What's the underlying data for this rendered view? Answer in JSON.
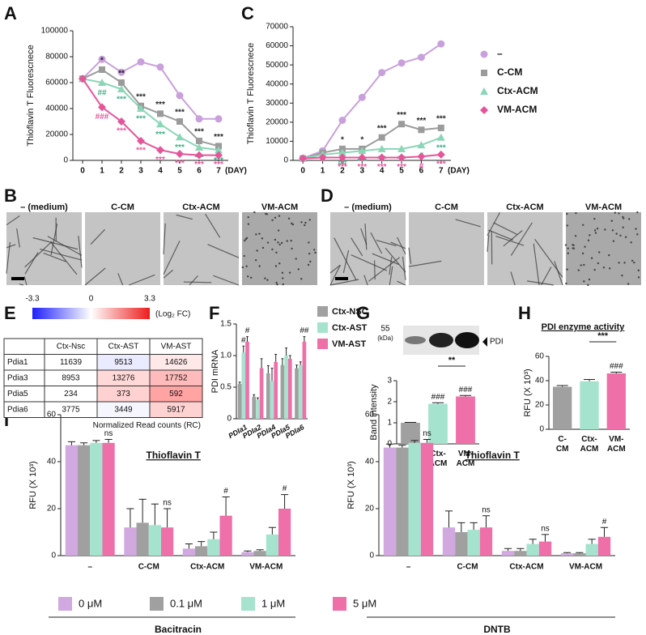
{
  "panel_labels": [
    "A",
    "B",
    "C",
    "D",
    "E",
    "F",
    "G",
    "H",
    "I"
  ],
  "micrographs": [
    {
      "labels": [
        "– (medium)",
        "C-CM",
        "Ctx-ACM",
        "VM-ACM"
      ]
    },
    {
      "labels": [
        "– (medium)",
        "C-CM",
        "Ctx-ACM",
        "VM-ACM"
      ]
    }
  ],
  "heatmap_table": {
    "colorbar": {
      "range": [
        -3.3,
        3.3
      ],
      "ticks": [
        -3.3,
        0,
        3.3
      ],
      "label": "(Log₂ FC)"
    },
    "columns": [
      "Ctx-Nsc",
      "Ctx-AST",
      "VM-AST"
    ],
    "rows": [
      {
        "name": "Pdia1",
        "values": [
          11639,
          9513,
          14626
        ]
      },
      {
        "name": "Pdia3",
        "values": [
          8953,
          13276,
          17752
        ]
      },
      {
        "name": "Pdia5",
        "values": [
          234,
          373,
          592
        ]
      },
      {
        "name": "Pdia6",
        "values": [
          3775,
          3449,
          5917
        ]
      }
    ],
    "caption": "Normalized Read counts (RC)"
  },
  "blot": {
    "marker": "55",
    "unit": "(kDa)",
    "band": "PDI"
  },
  "chart_data": [
    {
      "type": "line",
      "ylabel": "Thioflavin T Fluorescnece",
      "xlabel": "(DAY)",
      "x": [
        0,
        1,
        2,
        3,
        4,
        5,
        6,
        7
      ],
      "xlim": [
        -0.5,
        7.5
      ],
      "xticks": [
        0,
        1,
        2,
        3,
        4,
        5,
        6,
        7
      ],
      "series": [
        {
          "name": "–",
          "color": "#c9a0dc",
          "marker": "circle",
          "sig_color": "#c9a0dc"
        },
        {
          "name": "C-CM",
          "color": "#9b9b9b",
          "marker": "square",
          "sig_color": "#222222"
        },
        {
          "name": "Ctx-ACM",
          "color": "#8ad6b6",
          "marker": "triangle",
          "sig_color": "#3fae86"
        },
        {
          "name": "VM-ACM",
          "color": "#e4559a",
          "marker": "diamond",
          "sig_color": "#e4559a"
        }
      ],
      "panels": [
        {
          "ylim": [
            0,
            100000
          ],
          "yticks": [
            0,
            20000,
            40000,
            60000,
            80000,
            100000
          ],
          "values": [
            [
              63000,
              78000,
              68000,
              76000,
              72000,
              50000,
              32000,
              32000
            ],
            [
              63000,
              70000,
              60000,
              42000,
              36000,
              30000,
              15000,
              11000
            ],
            [
              63000,
              60000,
              55000,
              40000,
              28000,
              18000,
              10000,
              8000
            ],
            [
              63000,
              41000,
              30000,
              15000,
              8000,
              5000,
              4000,
              4000
            ]
          ],
          "sig": [
            [
              null,
              null,
              null,
              null,
              null,
              null,
              null,
              null
            ],
            [
              null,
              "*",
              "**",
              "***",
              "***",
              "***",
              "***",
              "***"
            ],
            [
              null,
              "##",
              "***",
              "***",
              "***",
              "***",
              "***",
              "***"
            ],
            [
              null,
              "###",
              "***",
              "***",
              "***",
              "***",
              "***",
              "***"
            ]
          ]
        },
        {
          "ylim": [
            0,
            70000
          ],
          "yticks": [
            0,
            10000,
            20000,
            30000,
            40000,
            50000,
            60000,
            70000
          ],
          "values": [
            [
              1000,
              5000,
              21000,
              33000,
              46000,
              51000,
              54000,
              61000
            ],
            [
              1000,
              4000,
              6000,
              6000,
              12000,
              19000,
              16000,
              17000
            ],
            [
              1000,
              3000,
              4000,
              5000,
              6000,
              6000,
              8000,
              12000
            ],
            [
              1000,
              1500,
              1500,
              1500,
              1500,
              1500,
              2000,
              3000
            ]
          ],
          "sig": [
            [
              null,
              null,
              null,
              null,
              null,
              null,
              null,
              null
            ],
            [
              null,
              null,
              "*",
              "*",
              "***",
              "***",
              "***",
              "***"
            ],
            [
              null,
              null,
              "##",
              "***",
              "***",
              "***",
              "#",
              "***"
            ],
            [
              null,
              null,
              "***",
              "***",
              "***",
              "***",
              "#",
              "***"
            ]
          ]
        }
      ]
    },
    {
      "type": "bar",
      "ylabel": "PDI mRNA",
      "categories": [
        "PDIa1",
        "PDIa2",
        "PDIa4",
        "PDIa5",
        "PDIa6"
      ],
      "ylim": [
        0,
        1.5
      ],
      "yticks": [
        0,
        0.5,
        {
          "value": 1,
          "label": "1.0"
        },
        1.5
      ],
      "series": [
        {
          "name": "Ctx-NSC",
          "color": "#a0a0a0",
          "values": [
            0.55,
            0.35,
            0.72,
            0.85,
            0.8
          ],
          "errors": [
            0.03,
            0.03,
            0.12,
            0.1,
            0.05
          ],
          "sig": [
            null,
            null,
            null,
            null,
            null
          ]
        },
        {
          "name": "Ctx-AST",
          "color": "#a6e3cf",
          "values": [
            1.05,
            0.3,
            0.6,
            1.0,
            0.85
          ],
          "errors": [
            0.1,
            0.03,
            0.2,
            0.12,
            0.05
          ],
          "sig": [
            "#",
            null,
            null,
            null,
            null
          ]
        },
        {
          "name": "VM-AST",
          "color": "#ef6fa9",
          "values": [
            1.22,
            0.8,
            0.9,
            0.95,
            1.22
          ],
          "errors": [
            0.08,
            0.15,
            0.12,
            0.05,
            0.08
          ],
          "sig": [
            "#",
            null,
            null,
            null,
            "##"
          ]
        }
      ]
    },
    {
      "type": "bar",
      "ylabel": "Band intensity",
      "categories": [
        "C-CM",
        "Ctx-ACM",
        "VM-ACM"
      ],
      "colors": [
        "#a0a0a0",
        "#a6e3cf",
        "#ef6fa9"
      ],
      "values": [
        1.0,
        1.9,
        2.25
      ],
      "errors": [
        0.02,
        0.05,
        0.05
      ],
      "sig": [
        null,
        "###",
        "###"
      ],
      "bracket": "**",
      "ylim": [
        0,
        3
      ],
      "yticks": [
        0,
        1,
        2,
        3
      ]
    },
    {
      "type": "bar",
      "title": "PDI enzyme activity",
      "ylabel": "RFU (X 10³)",
      "categories": [
        "C-CM",
        "Ctx-ACM",
        "VM-ACM"
      ],
      "colors": [
        "#a0a0a0",
        "#a6e3cf",
        "#ef6fa9"
      ],
      "values": [
        35,
        39.5,
        46
      ],
      "errors": [
        1,
        1.5,
        1
      ],
      "sig": [
        null,
        null,
        "###"
      ],
      "bracket": "***",
      "ylim": [
        0,
        60
      ],
      "yticks": [
        0,
        20,
        40,
        60
      ]
    },
    {
      "type": "bar",
      "ylabel": "RFU (X 10³)",
      "categories": [
        "–",
        "C-CM",
        "Ctx-ACM",
        "VM-ACM"
      ],
      "series": [
        {
          "name": "0 μM",
          "color": "#d2a8e0"
        },
        {
          "name": "0.1 μM",
          "color": "#a0a0a0"
        },
        {
          "name": "1 μM",
          "color": "#a6e3cf"
        },
        {
          "name": "5 μM",
          "color": "#ef6fa9"
        }
      ],
      "ylim": [
        0,
        60
      ],
      "yticks": [
        0,
        20,
        40,
        60
      ],
      "panels": [
        {
          "title": "Thioflavin T",
          "xlabel": "Bacitracin",
          "values": [
            [
              47,
              12,
              3,
              1.5
            ],
            [
              47,
              14,
              4,
              2
            ],
            [
              48,
              13,
              7,
              9
            ],
            [
              48,
              12,
              17,
              20
            ]
          ],
          "errors": [
            [
              1.5,
              8,
              2,
              0.5
            ],
            [
              1,
              10,
              2,
              0.5
            ],
            [
              1,
              9,
              3,
              3
            ],
            [
              1.5,
              8,
              8,
              6
            ]
          ],
          "sig": [
            [
              null,
              null,
              null,
              null
            ],
            [
              null,
              null,
              null,
              null
            ],
            [
              null,
              null,
              null,
              null
            ],
            [
              "ns",
              "ns",
              "#",
              "#"
            ]
          ]
        },
        {
          "title": "Thioflavin T",
          "xlabel": "DNTB",
          "values": [
            [
              46,
              12,
              2,
              1
            ],
            [
              46,
              10,
              2,
              1
            ],
            [
              48,
              11,
              5,
              5
            ],
            [
              48,
              12,
              6,
              8
            ]
          ],
          "errors": [
            [
              1.5,
              7,
              1,
              0.3
            ],
            [
              1,
              4,
              1,
              0.3
            ],
            [
              1,
              3,
              2,
              2
            ],
            [
              1.5,
              5,
              3,
              4
            ]
          ],
          "sig": [
            [
              null,
              null,
              null,
              null
            ],
            [
              null,
              null,
              null,
              null
            ],
            [
              null,
              null,
              null,
              null
            ],
            [
              "ns",
              "ns",
              "ns",
              "#"
            ]
          ]
        }
      ]
    }
  ]
}
